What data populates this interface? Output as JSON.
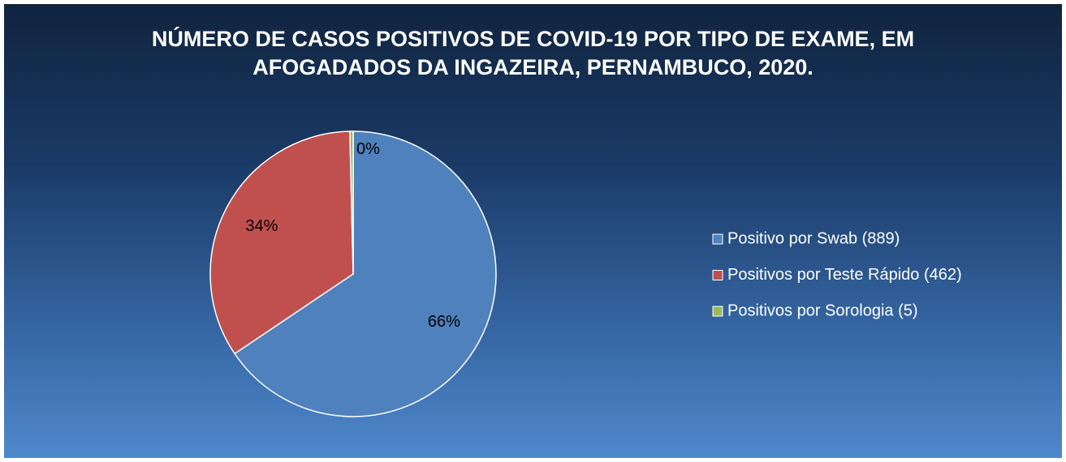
{
  "chart_data": {
    "type": "pie",
    "title": "NÚMERO DE CASOS POSITIVOS DE COVID-19 POR TIPO DE EXAME, EM AFOGADADOS DA INGAZEIRA, PERNAMBUCO, 2020.",
    "categories": [
      "Positivo por Swab (889)",
      "Positivos por Teste Rápido (462)",
      "Positivos por Sorologia (5)"
    ],
    "values": [
      65.56,
      34.07,
      0.37
    ],
    "value_labels": [
      "66%",
      "34%",
      "0%"
    ],
    "colors": [
      "#4f81bd",
      "#c0504d",
      "#9bbb59"
    ],
    "legend": "right"
  }
}
